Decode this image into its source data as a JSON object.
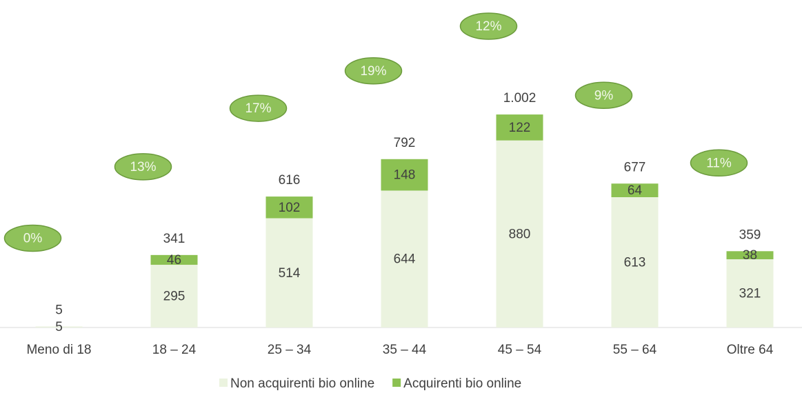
{
  "chart_data": {
    "type": "bar",
    "stacked": true,
    "categories": [
      "Meno di 18",
      "18 – 24",
      "25 – 34",
      "35 – 44",
      "45 – 54",
      "55 – 64",
      "Oltre 64"
    ],
    "series": [
      {
        "name": "Non acquirenti bio online",
        "color": "#ebf3df",
        "values": [
          5,
          295,
          514,
          644,
          880,
          613,
          321
        ]
      },
      {
        "name": "Acquirenti bio online",
        "color": "#8cc152",
        "values": [
          0,
          46,
          102,
          148,
          122,
          64,
          38
        ]
      }
    ],
    "totals": {
      "values": [
        5,
        341,
        616,
        792,
        1002,
        677,
        359
      ],
      "value_labels": [
        "5",
        "341",
        "616",
        "792",
        "1.002",
        "677",
        "359"
      ]
    },
    "shares": {
      "values": [
        0,
        13,
        17,
        19,
        12,
        9,
        11
      ],
      "value_labels": [
        "0%",
        "13%",
        "17%",
        "19%",
        "12%",
        "9%",
        "11%"
      ]
    },
    "ylim": [
      0,
      1200
    ],
    "legend": "bottom"
  }
}
